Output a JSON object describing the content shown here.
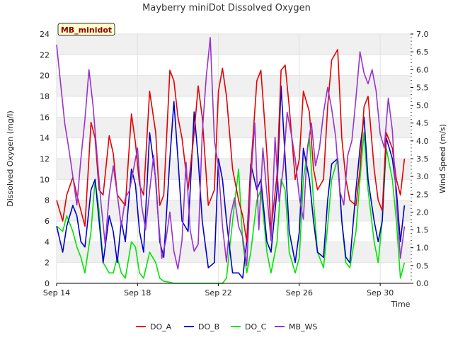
{
  "chart_data": {
    "type": "line",
    "title": "Mayberry miniDot Dissolved Oxygen",
    "tag": "MB_minidot",
    "xlabel": "Time",
    "ylabel": "Dissolved Oxygen (mg/l)",
    "y2label": "Wind Speed (m/s)",
    "xlim": [
      0,
      17.5
    ],
    "x_ticks": [
      {
        "label": "Sep 14",
        "day": 0
      },
      {
        "label": "Sep 18",
        "day": 4
      },
      {
        "label": "Sep 22",
        "day": 8
      },
      {
        "label": "Sep 26",
        "day": 12
      },
      {
        "label": "Sep 30",
        "day": 16
      }
    ],
    "ylim": [
      0,
      24
    ],
    "y_ticks": [
      "0",
      "2",
      "4",
      "6",
      "8",
      "10",
      "12",
      "14",
      "16",
      "18",
      "20",
      "22",
      "24"
    ],
    "y2lim": [
      0,
      7
    ],
    "y2_ticks": [
      "0.0",
      "0.5",
      "1.0",
      "1.5",
      "2.0",
      "2.5",
      "3.0",
      "3.5",
      "4.0",
      "4.5",
      "5.0",
      "5.5",
      "6.0",
      "6.5",
      "7.0"
    ],
    "grid": true,
    "legend_position": "bottom",
    "x_unit": "days after Sep 14 00:00",
    "series": [
      {
        "name": "DO_A",
        "color": "#e60000",
        "axis": "left",
        "x": [
          0,
          0.3,
          0.5,
          0.8,
          1.0,
          1.2,
          1.4,
          1.7,
          1.9,
          2.1,
          2.3,
          2.6,
          2.8,
          3.0,
          3.2,
          3.4,
          3.7,
          3.9,
          4.1,
          4.3,
          4.6,
          4.9,
          5.1,
          5.3,
          5.6,
          5.8,
          6.0,
          6.2,
          6.5,
          6.8,
          7.0,
          7.2,
          7.5,
          7.8,
          8.0,
          8.2,
          8.4,
          8.7,
          9.0,
          9.2,
          9.4,
          9.6,
          9.9,
          10.1,
          10.4,
          10.6,
          10.9,
          11.1,
          11.3,
          11.5,
          11.8,
          12.0,
          12.2,
          12.5,
          12.7,
          12.9,
          13.2,
          13.4,
          13.6,
          13.9,
          14.1,
          14.3,
          14.5,
          14.8,
          15.0,
          15.2,
          15.4,
          15.7,
          15.9,
          16.1,
          16.3,
          16.6,
          16.8,
          17.0,
          17.2
        ],
        "y": [
          8.0,
          6.0,
          8.5,
          10.2,
          8.5,
          7.0,
          5.5,
          15.5,
          14.0,
          9.0,
          8.5,
          14.2,
          12.5,
          8.5,
          8.0,
          7.5,
          16.3,
          13.5,
          9.5,
          8.5,
          18.5,
          14.5,
          7.5,
          8.5,
          20.5,
          19.5,
          16.0,
          14.0,
          9.0,
          14.5,
          19.0,
          16.0,
          7.5,
          9.0,
          18.5,
          20.7,
          18.0,
          11.0,
          8.0,
          6.5,
          4.0,
          11.0,
          19.5,
          20.5,
          12.5,
          5.0,
          10.5,
          20.5,
          21.0,
          17.0,
          10.0,
          12.0,
          18.5,
          16.5,
          11.0,
          9.0,
          10.0,
          17.0,
          21.5,
          22.5,
          14.0,
          10.0,
          8.0,
          7.5,
          11.0,
          17.0,
          18.0,
          11.0,
          8.0,
          7.0,
          14.5,
          13.0,
          10.0,
          8.5,
          12.0
        ]
      },
      {
        "name": "DO_B",
        "color": "#0000cc",
        "axis": "left",
        "x": [
          0,
          0.3,
          0.5,
          0.8,
          1.0,
          1.2,
          1.4,
          1.7,
          1.9,
          2.1,
          2.3,
          2.6,
          2.8,
          3.0,
          3.2,
          3.4,
          3.7,
          3.9,
          4.1,
          4.3,
          4.6,
          4.9,
          5.1,
          5.3,
          5.6,
          5.8,
          6.0,
          6.2,
          6.5,
          6.8,
          7.0,
          7.2,
          7.5,
          7.8,
          8.0,
          8.2,
          8.4,
          8.7,
          9.0,
          9.2,
          9.4,
          9.6,
          9.9,
          10.1,
          10.4,
          10.6,
          10.9,
          11.1,
          11.3,
          11.5,
          11.8,
          12.0,
          12.2,
          12.5,
          12.7,
          12.9,
          13.2,
          13.4,
          13.6,
          13.9,
          14.1,
          14.3,
          14.5,
          14.8,
          15.0,
          15.2,
          15.4,
          15.7,
          15.9,
          16.1,
          16.3,
          16.6,
          16.8,
          17.0,
          17.2
        ],
        "y": [
          5.5,
          3.0,
          5.5,
          7.5,
          6.5,
          4.0,
          3.5,
          9.0,
          10.0,
          6.0,
          2.0,
          6.5,
          5.0,
          2.0,
          6.0,
          4.0,
          11.0,
          9.5,
          5.0,
          3.0,
          14.5,
          10.0,
          4.0,
          2.5,
          12.0,
          17.5,
          12.0,
          6.0,
          5.0,
          16.5,
          12.0,
          6.0,
          1.5,
          2.0,
          12.0,
          10.0,
          6.0,
          1.0,
          1.0,
          0.5,
          4.0,
          11.5,
          9.0,
          10.0,
          4.0,
          3.0,
          9.0,
          19.0,
          12.0,
          5.0,
          2.0,
          5.0,
          13.0,
          10.0,
          6.0,
          3.0,
          2.5,
          8.0,
          11.5,
          12.0,
          6.0,
          2.5,
          2.0,
          9.0,
          13.0,
          16.0,
          10.0,
          6.0,
          4.0,
          6.0,
          14.0,
          12.0,
          9.0,
          4.0,
          7.5
        ]
      },
      {
        "name": "DO_C",
        "color": "#00e600",
        "axis": "left",
        "x": [
          0,
          0.3,
          0.5,
          0.8,
          1.0,
          1.2,
          1.4,
          1.7,
          1.9,
          2.1,
          2.3,
          2.6,
          2.8,
          3.0,
          3.2,
          3.4,
          3.7,
          3.9,
          4.1,
          4.3,
          4.6,
          4.9,
          5.1,
          5.3,
          5.6,
          5.8,
          6.0,
          6.2,
          6.5,
          6.8,
          7.0,
          7.2,
          7.5,
          7.8,
          8.0,
          8.2,
          8.4,
          8.7,
          9.0,
          9.2,
          9.4,
          9.6,
          9.9,
          10.1,
          10.4,
          10.6,
          10.9,
          11.1,
          11.3,
          11.5,
          11.8,
          12.0,
          12.2,
          12.5,
          12.7,
          12.9,
          13.2,
          13.4,
          13.6,
          13.9,
          14.1,
          14.3,
          14.5,
          14.8,
          15.0,
          15.2,
          15.4,
          15.7,
          15.9,
          16.1,
          16.3,
          16.6,
          16.8,
          17.0,
          17.2
        ],
        "y": [
          5.5,
          5.0,
          6.5,
          5.0,
          3.5,
          2.5,
          1.0,
          5.0,
          10.0,
          7.0,
          2.0,
          1.0,
          1.0,
          2.5,
          1.0,
          0.5,
          4.0,
          3.5,
          1.0,
          0.5,
          3.0,
          2.0,
          0.5,
          0.2,
          0.1,
          0.0,
          0.0,
          0.0,
          0.0,
          0.0,
          0.0,
          0.0,
          0.0,
          0.0,
          0.0,
          0.0,
          0.5,
          6.0,
          11.0,
          4.0,
          1.0,
          3.0,
          8.0,
          9.0,
          3.0,
          1.0,
          4.0,
          10.0,
          9.0,
          3.0,
          1.0,
          2.5,
          10.0,
          14.0,
          8.0,
          3.0,
          1.5,
          5.5,
          10.0,
          12.0,
          6.0,
          2.0,
          1.5,
          5.0,
          10.0,
          14.5,
          9.0,
          4.0,
          2.0,
          6.0,
          13.0,
          10.0,
          6.0,
          0.5,
          2.0
        ]
      },
      {
        "name": "MB_WS",
        "color": "#9933cc",
        "axis": "right",
        "x": [
          0,
          0.2,
          0.4,
          0.6,
          0.8,
          1.0,
          1.2,
          1.4,
          1.6,
          1.8,
          2.0,
          2.2,
          2.4,
          2.6,
          2.8,
          3.0,
          3.2,
          3.4,
          3.6,
          3.8,
          4.0,
          4.2,
          4.4,
          4.6,
          4.8,
          5.0,
          5.2,
          5.4,
          5.6,
          5.8,
          6.0,
          6.2,
          6.4,
          6.6,
          6.8,
          7.0,
          7.2,
          7.4,
          7.6,
          7.8,
          8.0,
          8.2,
          8.4,
          8.6,
          8.8,
          9.0,
          9.2,
          9.4,
          9.6,
          9.8,
          10.0,
          10.2,
          10.4,
          10.6,
          10.8,
          11.0,
          11.2,
          11.4,
          11.6,
          11.8,
          12.0,
          12.2,
          12.4,
          12.6,
          12.8,
          13.0,
          13.2,
          13.4,
          13.6,
          13.8,
          14.0,
          14.2,
          14.4,
          14.6,
          14.8,
          15.0,
          15.2,
          15.4,
          15.6,
          15.8,
          16.0,
          16.2,
          16.4,
          16.6,
          16.8,
          17.0,
          17.2
        ],
        "y": [
          6.7,
          5.6,
          4.5,
          3.8,
          3.0,
          2.2,
          3.5,
          4.6,
          6.0,
          5.0,
          3.6,
          2.2,
          1.1,
          2.5,
          3.3,
          2.5,
          1.6,
          2.4,
          2.6,
          3.2,
          3.8,
          2.2,
          1.5,
          2.6,
          3.6,
          2.0,
          0.7,
          1.2,
          2.0,
          0.9,
          0.4,
          1.2,
          3.4,
          1.5,
          0.9,
          1.1,
          4.2,
          5.8,
          6.9,
          4.0,
          3.3,
          1.6,
          0.6,
          1.9,
          2.4,
          1.6,
          1.3,
          0.5,
          2.9,
          4.5,
          1.5,
          3.8,
          2.5,
          1.2,
          4.1,
          2.3,
          3.2,
          4.8,
          4.2,
          3.5,
          2.4,
          1.8,
          3.8,
          4.5,
          3.3,
          3.8,
          4.8,
          5.5,
          4.9,
          4.1,
          2.6,
          2.2,
          3.6,
          4.0,
          5.2,
          6.5,
          5.9,
          5.6,
          6.0,
          5.4,
          4.2,
          3.8,
          5.2,
          4.3,
          2.3,
          0.7,
          1.6
        ]
      }
    ]
  }
}
